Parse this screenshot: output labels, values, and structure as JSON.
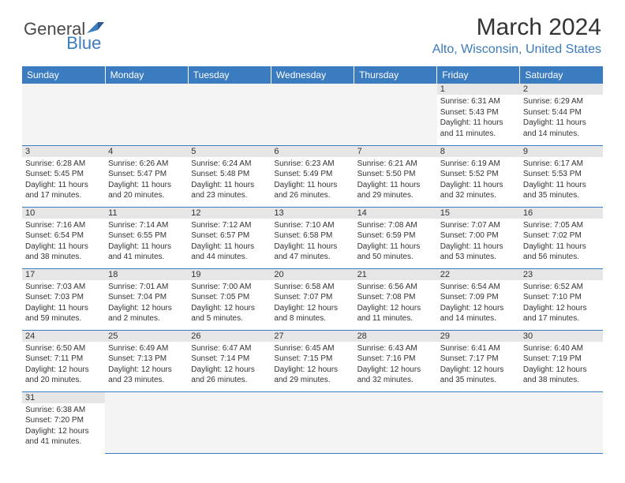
{
  "brand": {
    "part1": "General",
    "part2": "Blue"
  },
  "title": "March 2024",
  "location": "Alto, Wisconsin, United States",
  "colors": {
    "brand_blue": "#3b7bbf",
    "header_text": "#ffffff",
    "daynum_bg": "#e6e6e6",
    "divider": "#3b7bbf",
    "body_text": "#333333",
    "empty_bg": "#f4f4f4"
  },
  "typography": {
    "title_fontsize": 30,
    "location_fontsize": 16,
    "weekday_fontsize": 12,
    "daynum_fontsize": 11,
    "cell_fontsize": 10
  },
  "weekdays": [
    "Sunday",
    "Monday",
    "Tuesday",
    "Wednesday",
    "Thursday",
    "Friday",
    "Saturday"
  ],
  "layout": {
    "first_weekday_index": 5,
    "days_in_month": 31,
    "cols": 7
  },
  "days": {
    "1": {
      "sunrise": "6:31 AM",
      "sunset": "5:43 PM",
      "daylight_l1": "Daylight: 11 hours",
      "daylight_l2": "and 11 minutes."
    },
    "2": {
      "sunrise": "6:29 AM",
      "sunset": "5:44 PM",
      "daylight_l1": "Daylight: 11 hours",
      "daylight_l2": "and 14 minutes."
    },
    "3": {
      "sunrise": "6:28 AM",
      "sunset": "5:45 PM",
      "daylight_l1": "Daylight: 11 hours",
      "daylight_l2": "and 17 minutes."
    },
    "4": {
      "sunrise": "6:26 AM",
      "sunset": "5:47 PM",
      "daylight_l1": "Daylight: 11 hours",
      "daylight_l2": "and 20 minutes."
    },
    "5": {
      "sunrise": "6:24 AM",
      "sunset": "5:48 PM",
      "daylight_l1": "Daylight: 11 hours",
      "daylight_l2": "and 23 minutes."
    },
    "6": {
      "sunrise": "6:23 AM",
      "sunset": "5:49 PM",
      "daylight_l1": "Daylight: 11 hours",
      "daylight_l2": "and 26 minutes."
    },
    "7": {
      "sunrise": "6:21 AM",
      "sunset": "5:50 PM",
      "daylight_l1": "Daylight: 11 hours",
      "daylight_l2": "and 29 minutes."
    },
    "8": {
      "sunrise": "6:19 AM",
      "sunset": "5:52 PM",
      "daylight_l1": "Daylight: 11 hours",
      "daylight_l2": "and 32 minutes."
    },
    "9": {
      "sunrise": "6:17 AM",
      "sunset": "5:53 PM",
      "daylight_l1": "Daylight: 11 hours",
      "daylight_l2": "and 35 minutes."
    },
    "10": {
      "sunrise": "7:16 AM",
      "sunset": "6:54 PM",
      "daylight_l1": "Daylight: 11 hours",
      "daylight_l2": "and 38 minutes."
    },
    "11": {
      "sunrise": "7:14 AM",
      "sunset": "6:55 PM",
      "daylight_l1": "Daylight: 11 hours",
      "daylight_l2": "and 41 minutes."
    },
    "12": {
      "sunrise": "7:12 AM",
      "sunset": "6:57 PM",
      "daylight_l1": "Daylight: 11 hours",
      "daylight_l2": "and 44 minutes."
    },
    "13": {
      "sunrise": "7:10 AM",
      "sunset": "6:58 PM",
      "daylight_l1": "Daylight: 11 hours",
      "daylight_l2": "and 47 minutes."
    },
    "14": {
      "sunrise": "7:08 AM",
      "sunset": "6:59 PM",
      "daylight_l1": "Daylight: 11 hours",
      "daylight_l2": "and 50 minutes."
    },
    "15": {
      "sunrise": "7:07 AM",
      "sunset": "7:00 PM",
      "daylight_l1": "Daylight: 11 hours",
      "daylight_l2": "and 53 minutes."
    },
    "16": {
      "sunrise": "7:05 AM",
      "sunset": "7:02 PM",
      "daylight_l1": "Daylight: 11 hours",
      "daylight_l2": "and 56 minutes."
    },
    "17": {
      "sunrise": "7:03 AM",
      "sunset": "7:03 PM",
      "daylight_l1": "Daylight: 11 hours",
      "daylight_l2": "and 59 minutes."
    },
    "18": {
      "sunrise": "7:01 AM",
      "sunset": "7:04 PM",
      "daylight_l1": "Daylight: 12 hours",
      "daylight_l2": "and 2 minutes."
    },
    "19": {
      "sunrise": "7:00 AM",
      "sunset": "7:05 PM",
      "daylight_l1": "Daylight: 12 hours",
      "daylight_l2": "and 5 minutes."
    },
    "20": {
      "sunrise": "6:58 AM",
      "sunset": "7:07 PM",
      "daylight_l1": "Daylight: 12 hours",
      "daylight_l2": "and 8 minutes."
    },
    "21": {
      "sunrise": "6:56 AM",
      "sunset": "7:08 PM",
      "daylight_l1": "Daylight: 12 hours",
      "daylight_l2": "and 11 minutes."
    },
    "22": {
      "sunrise": "6:54 AM",
      "sunset": "7:09 PM",
      "daylight_l1": "Daylight: 12 hours",
      "daylight_l2": "and 14 minutes."
    },
    "23": {
      "sunrise": "6:52 AM",
      "sunset": "7:10 PM",
      "daylight_l1": "Daylight: 12 hours",
      "daylight_l2": "and 17 minutes."
    },
    "24": {
      "sunrise": "6:50 AM",
      "sunset": "7:11 PM",
      "daylight_l1": "Daylight: 12 hours",
      "daylight_l2": "and 20 minutes."
    },
    "25": {
      "sunrise": "6:49 AM",
      "sunset": "7:13 PM",
      "daylight_l1": "Daylight: 12 hours",
      "daylight_l2": "and 23 minutes."
    },
    "26": {
      "sunrise": "6:47 AM",
      "sunset": "7:14 PM",
      "daylight_l1": "Daylight: 12 hours",
      "daylight_l2": "and 26 minutes."
    },
    "27": {
      "sunrise": "6:45 AM",
      "sunset": "7:15 PM",
      "daylight_l1": "Daylight: 12 hours",
      "daylight_l2": "and 29 minutes."
    },
    "28": {
      "sunrise": "6:43 AM",
      "sunset": "7:16 PM",
      "daylight_l1": "Daylight: 12 hours",
      "daylight_l2": "and 32 minutes."
    },
    "29": {
      "sunrise": "6:41 AM",
      "sunset": "7:17 PM",
      "daylight_l1": "Daylight: 12 hours",
      "daylight_l2": "and 35 minutes."
    },
    "30": {
      "sunrise": "6:40 AM",
      "sunset": "7:19 PM",
      "daylight_l1": "Daylight: 12 hours",
      "daylight_l2": "and 38 minutes."
    },
    "31": {
      "sunrise": "6:38 AM",
      "sunset": "7:20 PM",
      "daylight_l1": "Daylight: 12 hours",
      "daylight_l2": "and 41 minutes."
    }
  },
  "labels": {
    "sunrise_prefix": "Sunrise: ",
    "sunset_prefix": "Sunset: "
  }
}
